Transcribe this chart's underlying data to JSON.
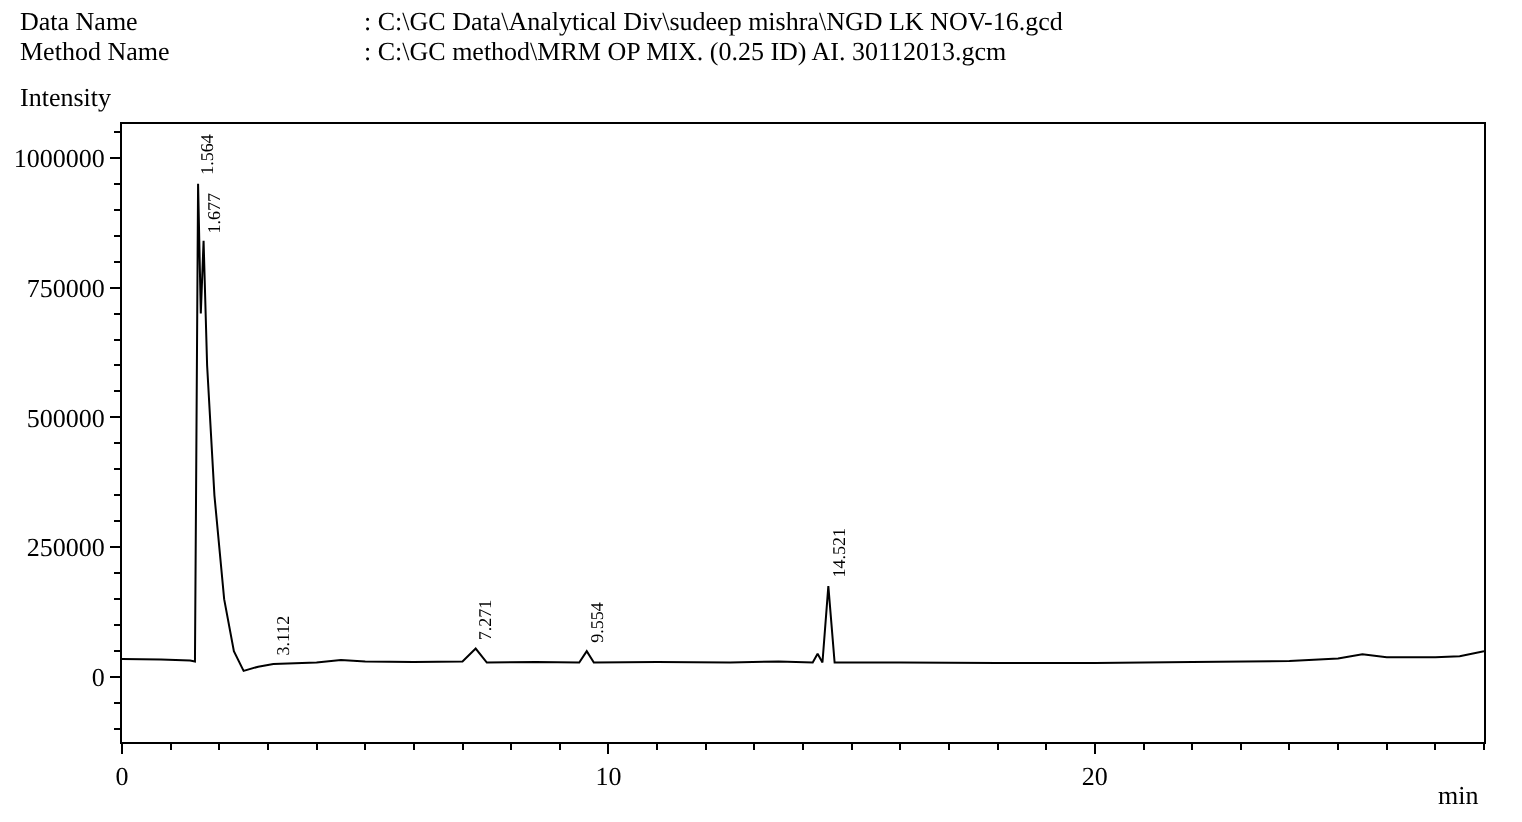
{
  "chart_data": {
    "type": "line",
    "xlabel": "min",
    "ylabel": "Intensity",
    "annotations": [
      "Data Name",
      ": C:\\GC Data\\Analytical Div\\sudeep mishra\\NGD LK NOV-16.gcd",
      "Method Name",
      ": C:\\GC method\\MRM OP MIX. (0.25 ID) AI. 30112013.gcm",
      {
        "text": "1.564",
        "x": 1.564,
        "y": 950000
      },
      {
        "text": "1.677",
        "x": 1.677,
        "y": 840000
      },
      {
        "text": "3.112",
        "x": 3.112,
        "y": 25000
      },
      {
        "text": "7.271",
        "x": 7.271,
        "y": 55000
      },
      {
        "text": "9.554",
        "x": 9.554,
        "y": 50000
      },
      {
        "text": "14.521",
        "x": 14.521,
        "y": 175000
      }
    ],
    "series": [
      {
        "color": "#000000",
        "x": [
          0,
          0.8,
          1.4,
          1.5,
          1.564,
          1.62,
          1.677,
          1.75,
          1.9,
          2.1,
          2.3,
          2.5,
          2.8,
          3.112,
          4,
          4.5,
          5,
          6,
          7,
          7.271,
          7.5,
          8.5,
          9.4,
          9.554,
          9.7,
          11,
          12.5,
          13.5,
          14.2,
          14.3,
          14.4,
          14.521,
          14.65,
          16,
          18,
          20,
          22,
          24,
          25,
          25.5,
          26,
          27,
          27.5,
          28
        ],
        "values": [
          35000,
          34000,
          32000,
          30000,
          950000,
          700000,
          840000,
          600000,
          350000,
          150000,
          50000,
          12000,
          20000,
          25000,
          28000,
          33000,
          30000,
          29000,
          30000,
          55000,
          28000,
          29000,
          28000,
          50000,
          28000,
          29000,
          28000,
          30000,
          28000,
          45000,
          28000,
          175000,
          28000,
          28000,
          27000,
          27000,
          29000,
          31000,
          36000,
          44000,
          38000,
          38000,
          40000,
          50000
        ]
      }
    ],
    "xlim": [
      0,
      28
    ],
    "ylim": [
      -125000,
      1065000
    ],
    "xticks": [
      0,
      10,
      20
    ],
    "yticks": [
      0,
      250000,
      500000,
      750000,
      1000000
    ],
    "grid": false,
    "marker": "none",
    "line_style": "solid"
  }
}
